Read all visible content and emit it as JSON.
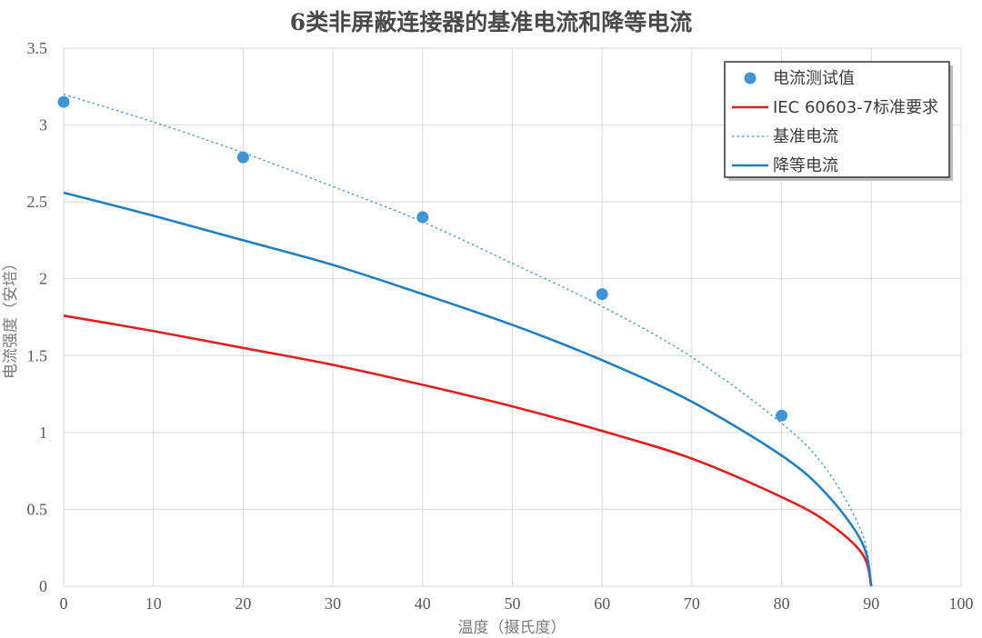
{
  "chart_data": {
    "type": "line",
    "title": "6类非屏蔽连接器的基准电流和降等电流",
    "xlabel": "温度（摄氏度）",
    "ylabel": "电流强度（安培）",
    "xlim": [
      0,
      100
    ],
    "ylim": [
      0,
      3.5
    ],
    "xticks": [
      "0",
      "10",
      "20",
      "30",
      "40",
      "50",
      "60",
      "70",
      "80",
      "90",
      "100"
    ],
    "yticks": [
      "0",
      "0.5",
      "1",
      "1.5",
      "2",
      "2.5",
      "3",
      "3.5"
    ],
    "grid": true,
    "legend_position": "top-right",
    "series": [
      {
        "name": "电流测试值",
        "kind": "scatter",
        "color": "#3e95d6",
        "x": [
          0,
          20,
          40,
          60,
          80
        ],
        "y": [
          3.15,
          2.79,
          2.4,
          1.9,
          1.11
        ]
      },
      {
        "name": "IEC 60603-7标准要求",
        "kind": "line",
        "color": "#e02020",
        "x": [
          0,
          10,
          20,
          30,
          40,
          50,
          60,
          70,
          80,
          85,
          89,
          90
        ],
        "y": [
          1.76,
          1.66,
          1.55,
          1.44,
          1.31,
          1.17,
          1.01,
          0.83,
          0.58,
          0.42,
          0.21,
          0
        ]
      },
      {
        "name": "基准电流",
        "kind": "dotted-line",
        "color": "#3e95d6",
        "x": [
          0,
          10,
          20,
          30,
          40,
          50,
          60,
          70,
          80,
          85,
          89,
          90
        ],
        "y": [
          3.2,
          3.02,
          2.82,
          2.6,
          2.37,
          2.1,
          1.82,
          1.49,
          1.06,
          0.76,
          0.34,
          0
        ]
      },
      {
        "name": "降等电流",
        "kind": "line",
        "color": "#1f7fc0",
        "x": [
          0,
          10,
          20,
          30,
          40,
          50,
          60,
          70,
          80,
          85,
          89,
          90
        ],
        "y": [
          2.56,
          2.41,
          2.25,
          2.09,
          1.9,
          1.7,
          1.47,
          1.2,
          0.85,
          0.6,
          0.28,
          0
        ]
      }
    ]
  }
}
